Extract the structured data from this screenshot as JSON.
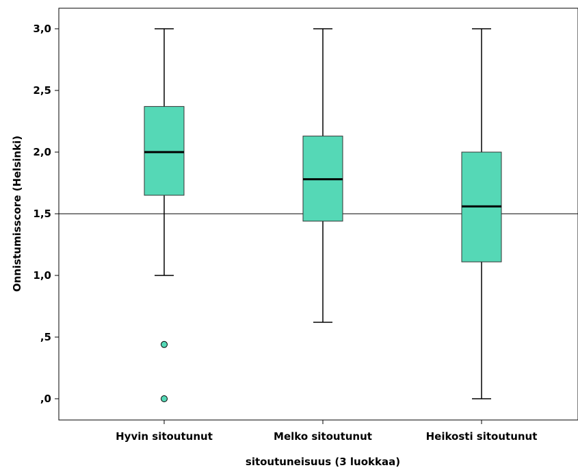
{
  "chart_data": {
    "type": "boxplot",
    "xlabel": "sitoutuneisuus (3 luokkaa)",
    "ylabel": "Onnistumisscore (Helsinki)",
    "ylim": [
      0.0,
      3.0
    ],
    "yticks": [
      {
        "value": 0.0,
        "label": ",0"
      },
      {
        "value": 0.5,
        "label": ",5"
      },
      {
        "value": 1.0,
        "label": "1,0"
      },
      {
        "value": 1.5,
        "label": "1,5"
      },
      {
        "value": 2.0,
        "label": "2,0"
      },
      {
        "value": 2.5,
        "label": "2,5"
      },
      {
        "value": 3.0,
        "label": "3,0"
      }
    ],
    "reference_line": 1.5,
    "box_color": "#55d8b6",
    "categories": [
      "Hyvin sitoutunut",
      "Melko sitoutunut",
      "Heikosti sitoutunut"
    ],
    "boxes": [
      {
        "min": 1.0,
        "q1": 1.65,
        "median": 2.0,
        "q3": 2.37,
        "max": 3.0,
        "outliers": [
          0.44,
          0.0
        ]
      },
      {
        "min": 0.62,
        "q1": 1.44,
        "median": 1.78,
        "q3": 2.13,
        "max": 3.0,
        "outliers": []
      },
      {
        "min": 0.0,
        "q1": 1.11,
        "median": 1.56,
        "q3": 2.0,
        "max": 3.0,
        "outliers": []
      }
    ]
  }
}
